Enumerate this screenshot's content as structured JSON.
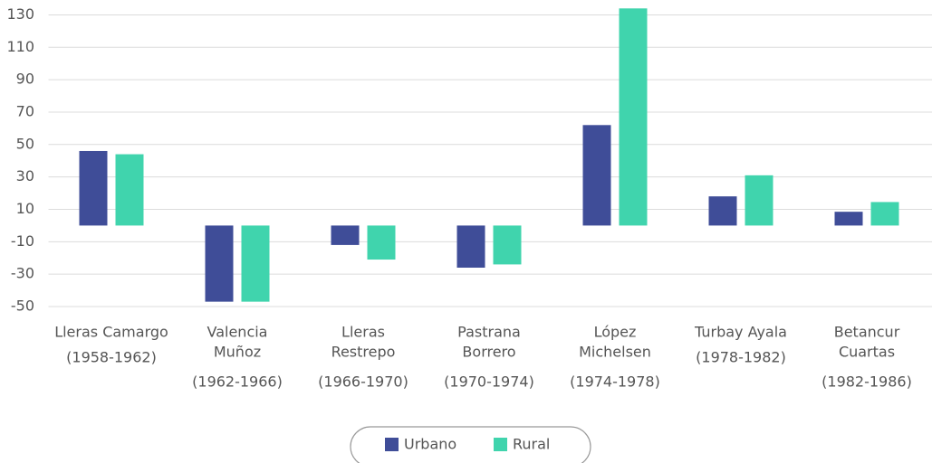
{
  "chart_data": {
    "type": "bar",
    "categories": [
      [
        "Lleras Camargo",
        "(1958-1962)"
      ],
      [
        "Valencia",
        "Muñoz",
        "(1962-1966)"
      ],
      [
        "Lleras",
        "Restrepo",
        "(1966-1970)"
      ],
      [
        "Pastrana",
        "Borrero",
        "(1970-1974)"
      ],
      [
        "López",
        "Michelsen",
        "(1974-1978)"
      ],
      [
        "Turbay Ayala",
        "(1978-1982)"
      ],
      [
        "Betancur",
        "Cuartas",
        "(1982-1986)"
      ]
    ],
    "series": [
      {
        "name": "Urbano",
        "color": "#3f4d98",
        "values": [
          46,
          -47,
          -12,
          -26,
          62,
          18,
          8.5
        ]
      },
      {
        "name": "Rural",
        "color": "#40d4ad",
        "values": [
          44,
          -47,
          -21,
          -24,
          134,
          31,
          14.5
        ]
      }
    ],
    "ylim": [
      -50,
      135
    ],
    "yticks": [
      -50,
      -30,
      -10,
      10,
      30,
      50,
      70,
      90,
      110,
      130
    ],
    "grid": true,
    "legend": "bottom"
  }
}
